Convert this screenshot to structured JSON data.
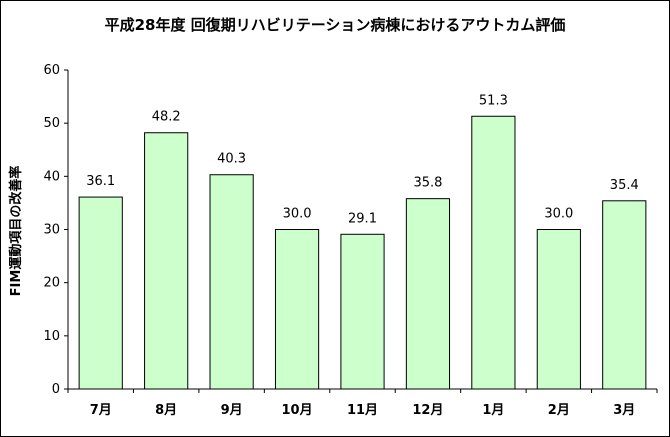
{
  "chart_data": {
    "type": "bar",
    "title": "平成28年度 回復期リハビリテーション病棟におけるアウトカム評価",
    "ylabel": "FIM運動項目の改善率",
    "xlabel": "",
    "categories": [
      "7月",
      "8月",
      "9月",
      "10月",
      "11月",
      "12月",
      "1月",
      "2月",
      "3月"
    ],
    "values": [
      36.1,
      48.2,
      40.3,
      30.0,
      29.1,
      35.8,
      51.3,
      30.0,
      35.4
    ],
    "data_labels": [
      "36.1",
      "48.2",
      "40.3",
      "30.0",
      "29.1",
      "35.8",
      "51.3",
      "30.0",
      "35.4"
    ],
    "ylim": [
      0,
      60
    ],
    "yticks": [
      0,
      10,
      20,
      30,
      40,
      50,
      60
    ],
    "grid": false,
    "legend": "none",
    "colors": {
      "bar_fill": "#ccffcc",
      "bar_stroke": "#000000",
      "axis": "#000000",
      "background": "#ffffff"
    }
  }
}
